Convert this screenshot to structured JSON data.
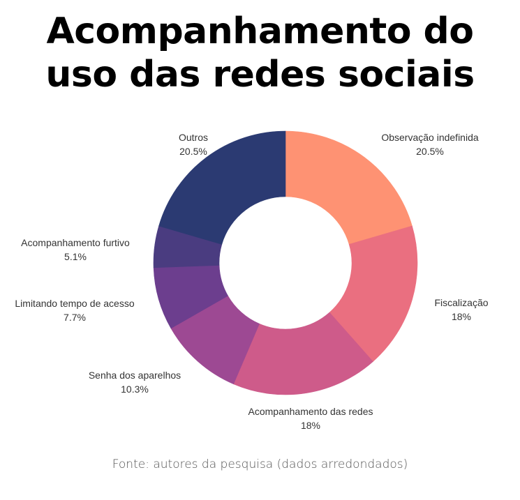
{
  "title_lines": [
    "Acompanhamento do",
    "uso das redes sociais"
  ],
  "source": "Fonte: autores da pesquisa (dados arredondados)",
  "chart_data": {
    "type": "pie",
    "variant": "donut",
    "title": "Acompanhamento do uso das redes sociais",
    "slices": [
      {
        "label": "Observação indefinida",
        "value": 20.5,
        "display": "20.5%",
        "color": "#fe9273"
      },
      {
        "label": "Fiscalização",
        "value": 18,
        "display": "18%",
        "color": "#ea6f80"
      },
      {
        "label": "Acompanhamento das redes",
        "value": 18,
        "display": "18%",
        "color": "#ce5b8a"
      },
      {
        "label": "Senha dos aparelhos",
        "value": 10.3,
        "display": "10.3%",
        "color": "#9d4993"
      },
      {
        "label": "Limitando tempo de acesso",
        "value": 7.7,
        "display": "7.7%",
        "color": "#6c3e8e"
      },
      {
        "label": "Acompanhamento furtivo",
        "value": 5.1,
        "display": "5.1%",
        "color": "#4a3c80"
      },
      {
        "label": "Outros",
        "value": 20.5,
        "display": "20.5%",
        "color": "#2b3a72"
      }
    ],
    "legend": "none",
    "labels": "outside"
  }
}
